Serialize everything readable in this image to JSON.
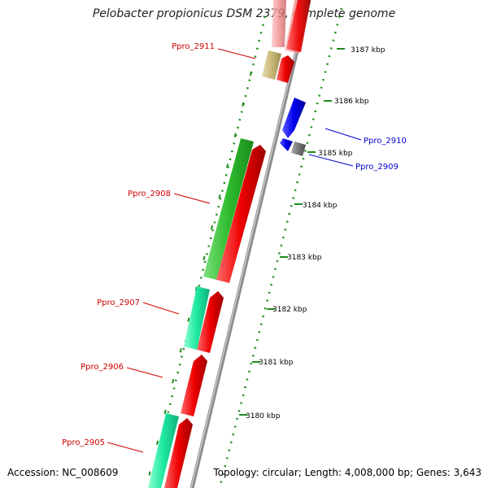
{
  "title": "Pelobacter propionicus DSM 2379, complete genome",
  "accession": "Accession: NC_008609",
  "stats": "Topology: circular; Length: 4,008,000 bp; Genes: 3,643",
  "ruler_ticks": [
    "3187 kbp",
    "3186 kbp",
    "3185 kbp",
    "3184 kbp",
    "3183 kbp",
    "3182 kbp",
    "3181 kbp",
    "3180 kbp"
  ],
  "gene_labels": [
    {
      "name": "Ppro_2911",
      "strand": "forward",
      "color": "#cc0000"
    },
    {
      "name": "Ppro_2910",
      "strand": "reverse",
      "color": "#0000cc"
    },
    {
      "name": "Ppro_2909",
      "strand": "reverse",
      "color": "#0000cc"
    },
    {
      "name": "Ppro_2908",
      "strand": "forward",
      "color": "#cc0000"
    },
    {
      "name": "Ppro_2907",
      "strand": "forward",
      "color": "#cc0000"
    },
    {
      "name": "Ppro_2906",
      "strand": "forward",
      "color": "#cc0000"
    },
    {
      "name": "Ppro_2905",
      "strand": "forward",
      "color": "#cc0000"
    }
  ],
  "colors": {
    "forward_cds": "#ee0000",
    "reverse_cds": "#0000ee",
    "backbone": "#8c8c8c",
    "gc_dots": "#1e8a1e",
    "cog_green": "#2ebd2e",
    "cog_teal": "#1de8a0",
    "cog_tan": "#c8b878",
    "cog_pink": "#f08c8c",
    "cog_gray": "#777777"
  }
}
